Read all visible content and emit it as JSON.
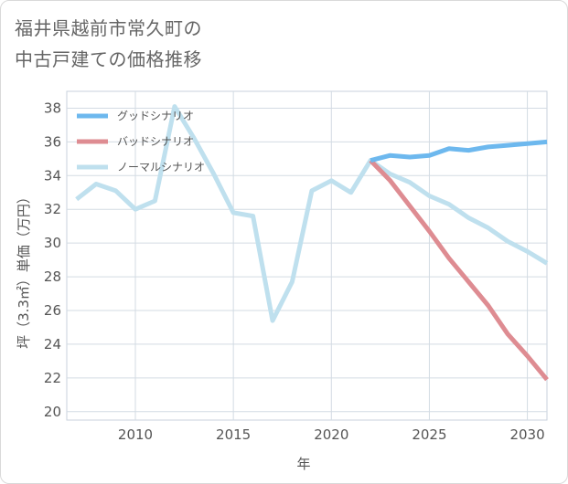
{
  "title_line1": "福井県越前市常久町の",
  "title_line2": "中古戸建ての価格推移",
  "chart_data": {
    "type": "line",
    "title": "福井県越前市常久町の中古戸建ての価格推移",
    "xlabel": "年",
    "ylabel": "坪（3.3㎡）単価（万円）",
    "xlim": [
      2006.5,
      2031
    ],
    "ylim": [
      19.5,
      39
    ],
    "xticks": [
      2010,
      2015,
      2020,
      2025,
      2030
    ],
    "yticks": [
      20,
      22,
      24,
      26,
      28,
      30,
      32,
      34,
      36,
      38
    ],
    "grid": true,
    "legend_position": "top-left",
    "series": [
      {
        "name": "グッドシナリオ",
        "color": "#6db8ee",
        "x": [
          2022,
          2023,
          2024,
          2025,
          2026,
          2027,
          2028,
          2029,
          2030,
          2031
        ],
        "y": [
          34.9,
          35.2,
          35.1,
          35.2,
          35.6,
          35.5,
          35.7,
          35.8,
          35.9,
          36.0
        ]
      },
      {
        "name": "バッドシナリオ",
        "color": "#de8c92",
        "x": [
          2022,
          2023,
          2024,
          2025,
          2026,
          2027,
          2028,
          2029,
          2030,
          2031
        ],
        "y": [
          34.9,
          33.7,
          32.2,
          30.7,
          29.1,
          27.7,
          26.3,
          24.6,
          23.3,
          21.9
        ]
      },
      {
        "name": "ノーマルシナリオ",
        "color": "#bfe0ee",
        "x": [
          2007,
          2008,
          2009,
          2010,
          2011,
          2012,
          2013,
          2014,
          2015,
          2016,
          2017,
          2018,
          2019,
          2020,
          2021,
          2022,
          2023,
          2024,
          2025,
          2026,
          2027,
          2028,
          2029,
          2030,
          2031
        ],
        "y": [
          32.6,
          33.5,
          33.1,
          32.0,
          32.5,
          38.1,
          36.2,
          34.1,
          31.8,
          31.6,
          25.4,
          27.7,
          33.1,
          33.7,
          33.0,
          34.9,
          34.1,
          33.6,
          32.8,
          32.3,
          31.5,
          30.9,
          30.1,
          29.5,
          28.8
        ]
      }
    ]
  }
}
